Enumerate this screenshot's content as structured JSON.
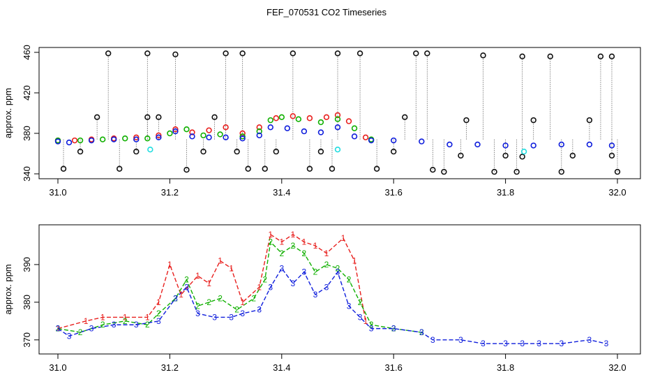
{
  "figure_title": "FEF_070531  CO2 Timeseries",
  "chart_data": [
    {
      "type": "scatter",
      "title": "FEF_070531  CO2 Timeseries",
      "xlabel": "",
      "ylabel": "approx. ppm",
      "xlim": [
        31.0,
        32.0
      ],
      "ylim": [
        340,
        460
      ],
      "x_ticks": [
        "31.0",
        "31.2",
        "31.4",
        "31.6",
        "31.8",
        "32.0"
      ],
      "y_ticks": [
        "340",
        "380",
        "420",
        "460"
      ],
      "grid": false,
      "series": [
        {
          "name": "red",
          "color": "#e8201e",
          "points": [
            [
              31.0,
              373
            ],
            [
              31.03,
              373
            ],
            [
              31.06,
              374
            ],
            [
              31.1,
              375
            ],
            [
              31.14,
              376
            ],
            [
              31.18,
              378
            ],
            [
              31.21,
              384
            ],
            [
              31.24,
              381
            ],
            [
              31.27,
              383
            ],
            [
              31.3,
              386
            ],
            [
              31.33,
              380
            ],
            [
              31.36,
              386
            ],
            [
              31.39,
              395
            ],
            [
              31.42,
              397
            ],
            [
              31.45,
              395
            ],
            [
              31.48,
              396
            ],
            [
              31.5,
              398
            ],
            [
              31.52,
              392
            ],
            [
              31.55,
              376
            ]
          ]
        },
        {
          "name": "green",
          "color": "#10b000",
          "points": [
            [
              31.0,
              373
            ],
            [
              31.04,
              373
            ],
            [
              31.08,
              374
            ],
            [
              31.12,
              375
            ],
            [
              31.16,
              375
            ],
            [
              31.2,
              380
            ],
            [
              31.23,
              384
            ],
            [
              31.26,
              378
            ],
            [
              31.29,
              379
            ],
            [
              31.33,
              377
            ],
            [
              31.36,
              382
            ],
            [
              31.38,
              393
            ],
            [
              31.4,
              396
            ],
            [
              31.43,
              394
            ],
            [
              31.47,
              391
            ],
            [
              31.5,
              394
            ],
            [
              31.53,
              385
            ],
            [
              31.56,
              374
            ]
          ]
        },
        {
          "name": "blue",
          "color": "#0f1edc",
          "points": [
            [
              31.0,
              372
            ],
            [
              31.02,
              371
            ],
            [
              31.06,
              373
            ],
            [
              31.1,
              374
            ],
            [
              31.14,
              374
            ],
            [
              31.18,
              376
            ],
            [
              31.21,
              382
            ],
            [
              31.24,
              377
            ],
            [
              31.27,
              376
            ],
            [
              31.3,
              376
            ],
            [
              31.33,
              375
            ],
            [
              31.36,
              378
            ],
            [
              31.38,
              386
            ],
            [
              31.41,
              385
            ],
            [
              31.44,
              382
            ],
            [
              31.47,
              381
            ],
            [
              31.5,
              386
            ],
            [
              31.53,
              377
            ],
            [
              31.56,
              373
            ],
            [
              31.6,
              373
            ],
            [
              31.65,
              372
            ],
            [
              31.7,
              369
            ],
            [
              31.75,
              369
            ],
            [
              31.8,
              368
            ],
            [
              31.85,
              368
            ],
            [
              31.9,
              369
            ],
            [
              31.95,
              369
            ],
            [
              31.99,
              368
            ]
          ]
        },
        {
          "name": "black",
          "color": "#111111",
          "points": [
            [
              31.01,
              345
            ],
            [
              31.04,
              362
            ],
            [
              31.07,
              396
            ],
            [
              31.09,
              459
            ],
            [
              31.11,
              345
            ],
            [
              31.14,
              362
            ],
            [
              31.16,
              396
            ],
            [
              31.16,
              459
            ],
            [
              31.18,
              396
            ],
            [
              31.21,
              458
            ],
            [
              31.23,
              344
            ],
            [
              31.26,
              362
            ],
            [
              31.28,
              396
            ],
            [
              31.3,
              459
            ],
            [
              31.32,
              362
            ],
            [
              31.33,
              459
            ],
            [
              31.34,
              345
            ],
            [
              31.37,
              345
            ],
            [
              31.39,
              362
            ],
            [
              31.42,
              459
            ],
            [
              31.45,
              345
            ],
            [
              31.47,
              362
            ],
            [
              31.49,
              345
            ],
            [
              31.5,
              459
            ],
            [
              31.54,
              459
            ],
            [
              31.57,
              345
            ],
            [
              31.6,
              362
            ],
            [
              31.62,
              396
            ],
            [
              31.64,
              459
            ],
            [
              31.66,
              459
            ],
            [
              31.67,
              344
            ],
            [
              31.69,
              342
            ],
            [
              31.72,
              358
            ],
            [
              31.73,
              393
            ],
            [
              31.76,
              457
            ],
            [
              31.78,
              342
            ],
            [
              31.8,
              358
            ],
            [
              31.82,
              342
            ],
            [
              31.83,
              357
            ],
            [
              31.83,
              456
            ],
            [
              31.85,
              393
            ],
            [
              31.88,
              456
            ],
            [
              31.9,
              342
            ],
            [
              31.92,
              358
            ],
            [
              31.95,
              393
            ],
            [
              31.97,
              456
            ],
            [
              31.99,
              456
            ],
            [
              31.99,
              358
            ],
            [
              32.0,
              342
            ]
          ]
        },
        {
          "name": "cyan",
          "color": "#22dde0",
          "points": [
            [
              31.165,
              364
            ],
            [
              31.5,
              364
            ],
            [
              31.833,
              362
            ]
          ]
        }
      ]
    },
    {
      "type": "line",
      "title": "",
      "xlabel": "",
      "ylabel": "approx. ppm",
      "xlim": [
        31.0,
        32.0
      ],
      "ylim": [
        367,
        400
      ],
      "x_ticks": [
        "31.0",
        "31.2",
        "31.4",
        "31.6",
        "31.8",
        "32.0"
      ],
      "y_ticks": [
        "370",
        "380",
        "390"
      ],
      "grid": false,
      "series": [
        {
          "name": "1",
          "label": "1",
          "color": "#e8201e",
          "points": [
            [
              31.0,
              373
            ],
            [
              31.05,
              375
            ],
            [
              31.08,
              376
            ],
            [
              31.12,
              376
            ],
            [
              31.16,
              376
            ],
            [
              31.18,
              380
            ],
            [
              31.2,
              390
            ],
            [
              31.22,
              382
            ],
            [
              31.25,
              387
            ],
            [
              31.27,
              385
            ],
            [
              31.29,
              391
            ],
            [
              31.31,
              389
            ],
            [
              31.33,
              380
            ],
            [
              31.36,
              384
            ],
            [
              31.38,
              398
            ],
            [
              31.4,
              396
            ],
            [
              31.42,
              398
            ],
            [
              31.44,
              396
            ],
            [
              31.46,
              395
            ],
            [
              31.48,
              393
            ],
            [
              31.51,
              397
            ],
            [
              31.53,
              391
            ],
            [
              31.55,
              375
            ]
          ]
        },
        {
          "name": "2",
          "label": "2",
          "color": "#10b000",
          "points": [
            [
              31.0,
              373
            ],
            [
              31.04,
              372
            ],
            [
              31.08,
              374
            ],
            [
              31.12,
              375
            ],
            [
              31.16,
              374
            ],
            [
              31.18,
              377
            ],
            [
              31.21,
              381
            ],
            [
              31.23,
              386
            ],
            [
              31.25,
              379
            ],
            [
              31.27,
              380
            ],
            [
              31.29,
              381
            ],
            [
              31.32,
              378
            ],
            [
              31.35,
              381
            ],
            [
              31.37,
              386
            ],
            [
              31.38,
              396
            ],
            [
              31.4,
              393
            ],
            [
              31.42,
              395
            ],
            [
              31.44,
              393
            ],
            [
              31.46,
              388
            ],
            [
              31.48,
              390
            ],
            [
              31.5,
              389
            ],
            [
              31.52,
              386
            ],
            [
              31.54,
              380
            ],
            [
              31.56,
              374
            ],
            [
              31.6,
              373
            ],
            [
              31.65,
              372
            ]
          ]
        },
        {
          "name": "3",
          "label": "3",
          "color": "#0f1edc",
          "points": [
            [
              31.0,
              373
            ],
            [
              31.02,
              371
            ],
            [
              31.06,
              373
            ],
            [
              31.1,
              374
            ],
            [
              31.14,
              374
            ],
            [
              31.18,
              375
            ],
            [
              31.21,
              381
            ],
            [
              31.23,
              384
            ],
            [
              31.25,
              377
            ],
            [
              31.28,
              376
            ],
            [
              31.31,
              376
            ],
            [
              31.33,
              377
            ],
            [
              31.36,
              378
            ],
            [
              31.38,
              384
            ],
            [
              31.4,
              389
            ],
            [
              31.42,
              385
            ],
            [
              31.44,
              388
            ],
            [
              31.46,
              382
            ],
            [
              31.48,
              384
            ],
            [
              31.5,
              388
            ],
            [
              31.52,
              379
            ],
            [
              31.54,
              376
            ],
            [
              31.56,
              373
            ],
            [
              31.6,
              373
            ],
            [
              31.65,
              372
            ],
            [
              31.67,
              370
            ],
            [
              31.72,
              370
            ],
            [
              31.76,
              369
            ],
            [
              31.8,
              369
            ],
            [
              31.83,
              369
            ],
            [
              31.86,
              369
            ],
            [
              31.9,
              369
            ],
            [
              31.95,
              370
            ],
            [
              31.98,
              369
            ]
          ]
        }
      ]
    }
  ]
}
